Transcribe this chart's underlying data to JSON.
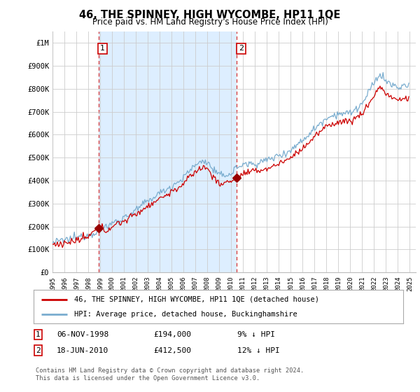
{
  "title": "46, THE SPINNEY, HIGH WYCOMBE, HP11 1QE",
  "subtitle": "Price paid vs. HM Land Registry's House Price Index (HPI)",
  "hpi_label": "HPI: Average price, detached house, Buckinghamshire",
  "property_label": "46, THE SPINNEY, HIGH WYCOMBE, HP11 1QE (detached house)",
  "sale1_date": "06-NOV-1998",
  "sale1_price": 194000,
  "sale1_note": "9% ↓ HPI",
  "sale1_year": 1998.85,
  "sale2_date": "18-JUN-2010",
  "sale2_price": 412500,
  "sale2_note": "12% ↓ HPI",
  "sale2_year": 2010.46,
  "footnote": "Contains HM Land Registry data © Crown copyright and database right 2024.\nThis data is licensed under the Open Government Licence v3.0.",
  "line_color_property": "#cc0000",
  "line_color_hpi": "#7aadcf",
  "sale_marker_color": "#990000",
  "shade_color": "#ddeeff",
  "vline_color": "#cc0000",
  "ylim": [
    0,
    1050000
  ],
  "xlim_left": 1995.0,
  "xlim_right": 2025.5,
  "yticks": [
    0,
    100000,
    200000,
    300000,
    400000,
    500000,
    600000,
    700000,
    800000,
    900000,
    1000000
  ],
  "ytick_labels": [
    "£0",
    "£100K",
    "£200K",
    "£300K",
    "£400K",
    "£500K",
    "£600K",
    "£700K",
    "£800K",
    "£900K",
    "£1M"
  ],
  "grid_color": "#cccccc",
  "background_color": "#ffffff",
  "plot_bg_color": "#ffffff"
}
